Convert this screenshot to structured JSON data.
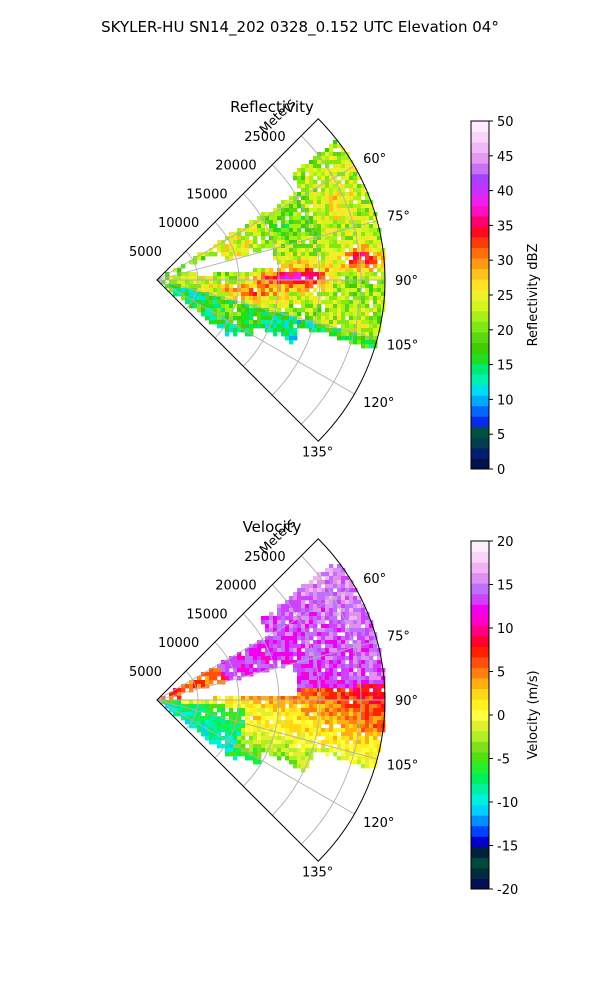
{
  "figure": {
    "title": "SKYLER-HU  SN14_202  0328_0.152 UTC Elevation 04°"
  },
  "chart_data": [
    {
      "type": "polar-sector",
      "title": "Reflectivity",
      "radial_label": "Meters",
      "r_max": 28000,
      "theta_range_deg": [
        45,
        135
      ],
      "r_ticks": [
        "5000",
        "10000",
        "15000",
        "20000",
        "25000"
      ],
      "theta_ticks": [
        "60°",
        "75°",
        "90°",
        "105°",
        "120°",
        "135°"
      ],
      "colorbar": {
        "label": "Reflectivity dBZ",
        "min": 0,
        "max": 50,
        "ticks": [
          "0",
          "5",
          "10",
          "15",
          "20",
          "25",
          "30",
          "35",
          "40",
          "45",
          "50"
        ],
        "colors": [
          "#001050",
          "#00206e",
          "#003e50",
          "#005040",
          "#0a2be8",
          "#0066ff",
          "#00a8ff",
          "#00dcf0",
          "#00f0b0",
          "#00e878",
          "#1de020",
          "#3ece08",
          "#5cd812",
          "#80e814",
          "#a8f018",
          "#d4f41e",
          "#f0f02a",
          "#ffe226",
          "#ffc21c",
          "#ff9a14",
          "#ff6e10",
          "#ff3a0a",
          "#ff0a20",
          "#ff0070",
          "#ff10c0",
          "#ee20f0",
          "#c830ff",
          "#a840ff",
          "#c870f8",
          "#e498f0",
          "#f0b8f4",
          "#f8d6fa",
          "#fcecfd"
        ]
      },
      "gridlines": true
    },
    {
      "type": "polar-sector",
      "title": "Velocity",
      "radial_label": "Meters",
      "r_max": 28000,
      "theta_range_deg": [
        45,
        135
      ],
      "r_ticks": [
        "5000",
        "10000",
        "15000",
        "20000",
        "25000"
      ],
      "theta_ticks": [
        "60°",
        "75°",
        "90°",
        "105°",
        "120°",
        "135°"
      ],
      "colorbar": {
        "label": "Velocity (m/s)",
        "min": -20,
        "max": 20,
        "ticks": [
          "-20",
          "-15",
          "-10",
          "-5",
          "0",
          "5",
          "10",
          "15",
          "20"
        ],
        "colors": [
          "#001050",
          "#002a40",
          "#004a3a",
          "#00203c",
          "#0000c8",
          "#0040ff",
          "#0090ff",
          "#00d0ff",
          "#00f0e0",
          "#00f0a0",
          "#00f060",
          "#20f030",
          "#50e010",
          "#80e020",
          "#b0f028",
          "#e0f030",
          "#ffff40",
          "#fff020",
          "#ffd818",
          "#ffb010",
          "#ff8010",
          "#ff5010",
          "#ff2000",
          "#ff0030",
          "#ff0080",
          "#ff00c8",
          "#f000f0",
          "#d040ff",
          "#c070ff",
          "#e090f0",
          "#f0b4f4",
          "#f8d6fa",
          "#fdeefe"
        ]
      },
      "gridlines": true
    }
  ]
}
